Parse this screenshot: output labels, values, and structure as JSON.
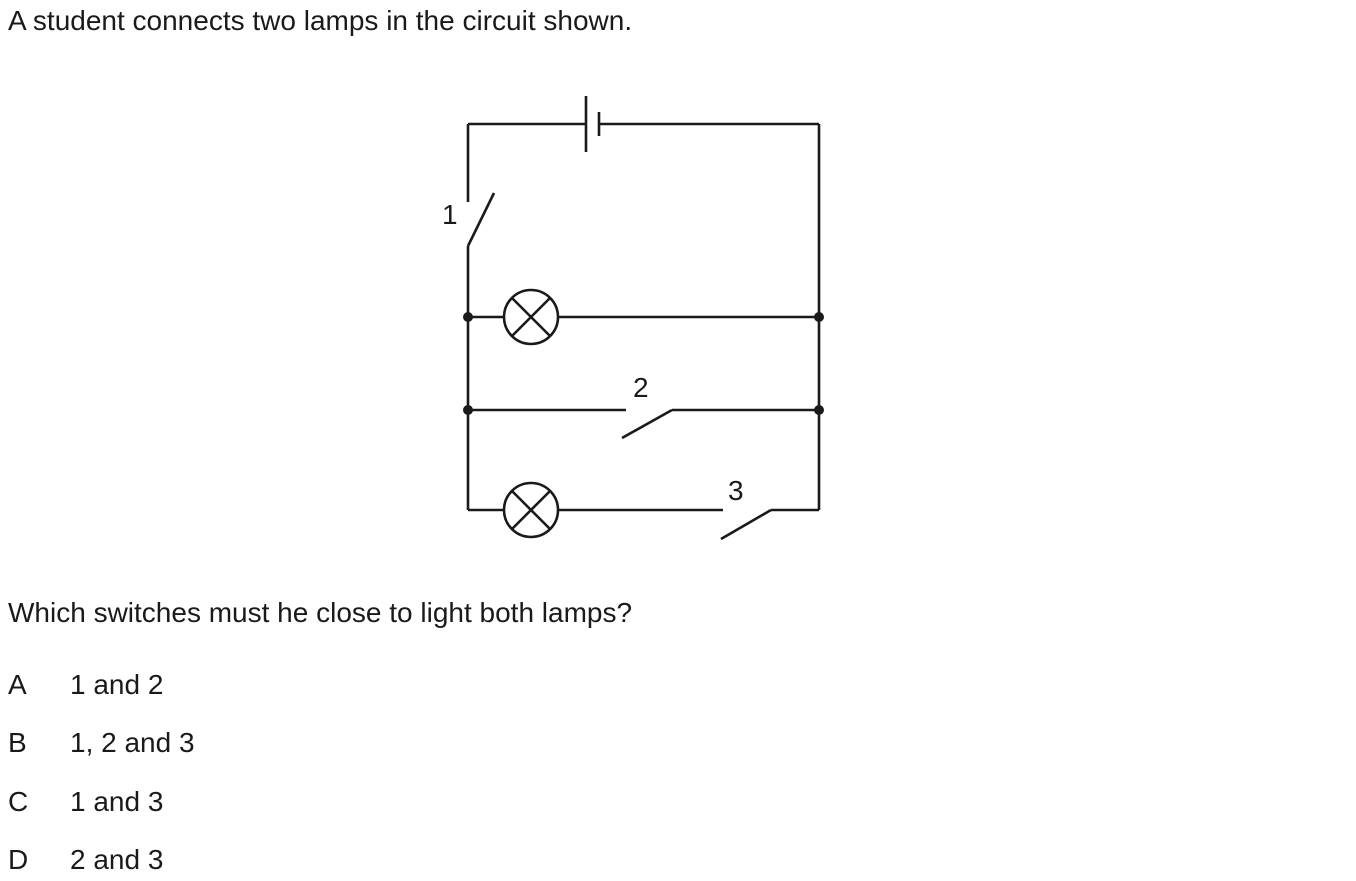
{
  "question": {
    "intro": "A student connects two lamps in the circuit shown.",
    "prompt": "Which switches must he close to light both lamps?"
  },
  "diagram": {
    "components": {
      "cell": "cell",
      "lamps": [
        "lamp",
        "lamp"
      ],
      "switches": [
        {
          "label": "1",
          "state": "open"
        },
        {
          "label": "2",
          "state": "open"
        },
        {
          "label": "3",
          "state": "open"
        }
      ]
    }
  },
  "options": [
    {
      "letter": "A",
      "text": "1 and 2"
    },
    {
      "letter": "B",
      "text": "1, 2 and 3"
    },
    {
      "letter": "C",
      "text": "1 and 3"
    },
    {
      "letter": "D",
      "text": "2 and 3"
    }
  ]
}
